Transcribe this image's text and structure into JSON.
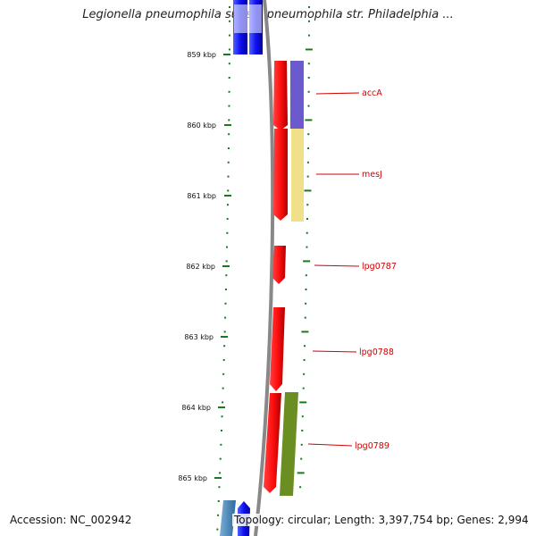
{
  "title": "Legionella pneumophila subsp. pneumophila str. Philadelphia ...",
  "accession": "Accession: NC_002942",
  "topology": "Topology: circular; Length: 3,397,754 bp; Genes: 2,994",
  "ticks": [
    "859 kbp",
    "860 kbp",
    "861 kbp",
    "862 kbp",
    "863 kbp",
    "864 kbp",
    "865 kbp"
  ],
  "genes": [
    {
      "name": "accA",
      "color": "#e02020",
      "cog_color": "#6a5acd"
    },
    {
      "name": "mesJ",
      "color": "#e02020",
      "cog_color": "#f0e08a"
    },
    {
      "name": "lpg0787",
      "color": "#e02020"
    },
    {
      "name": "lpg0788",
      "color": "#e02020"
    },
    {
      "name": "lpg0789",
      "color": "#e02020",
      "cog_color": "#6b8e23"
    }
  ],
  "colors": {
    "backbone": "#888888",
    "tick": "#1a7a1a",
    "gene_label": "#d00000",
    "other_strand_gene": "#1010e0",
    "other_gene_light": "#4682b4"
  }
}
